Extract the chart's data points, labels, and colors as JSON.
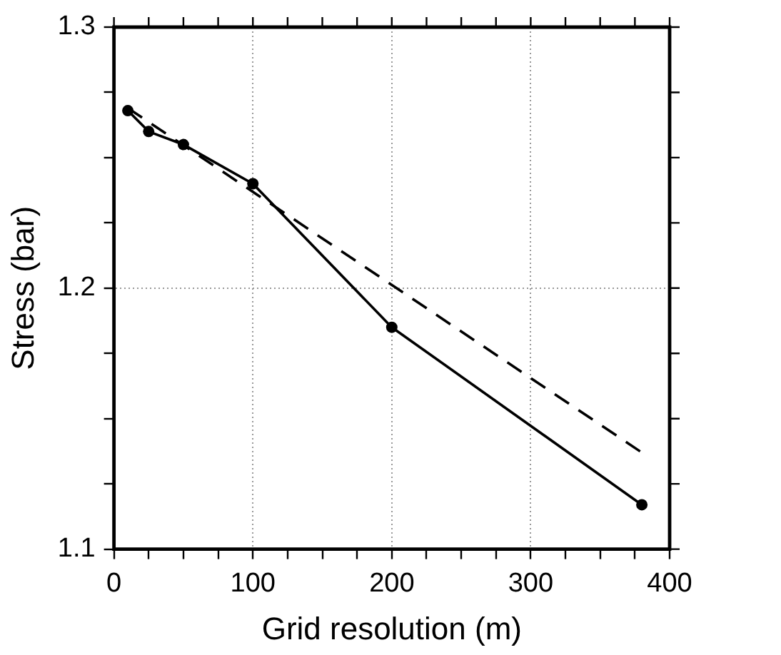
{
  "chart_data": {
    "type": "line",
    "xlabel": "Grid resolution (m)",
    "ylabel": "Stress (bar)",
    "xlim": [
      0,
      400
    ],
    "ylim": [
      1.1,
      1.3
    ],
    "xticks": [
      0,
      {
        "value": 25,
        "label": null
      },
      {
        "value": 50,
        "label": null
      },
      {
        "value": 75,
        "label": null
      },
      100,
      {
        "value": 125,
        "label": null
      },
      {
        "value": 150,
        "label": null
      },
      {
        "value": 175,
        "label": null
      },
      200,
      {
        "value": 225,
        "label": null
      },
      {
        "value": 250,
        "label": null
      },
      {
        "value": 275,
        "label": null
      },
      300,
      {
        "value": 325,
        "label": null
      },
      {
        "value": 350,
        "label": null
      },
      {
        "value": 375,
        "label": null
      },
      400
    ],
    "yticks": [
      1.1,
      {
        "value": 1.125,
        "label": null
      },
      {
        "value": 1.15,
        "label": null
      },
      {
        "value": 1.175,
        "label": null
      },
      1.2,
      {
        "value": 1.225,
        "label": null
      },
      {
        "value": 1.25,
        "label": null
      },
      {
        "value": 1.275,
        "label": null
      },
      1.3
    ],
    "grid": true,
    "legend": false,
    "series": [
      {
        "color": "#000000",
        "x": [
          10,
          25,
          50,
          100,
          200,
          380
        ],
        "values": [
          1.268,
          1.26,
          1.255,
          1.24,
          1.185,
          1.117
        ],
        "marker": "circle",
        "line_style": "solid"
      },
      {
        "color": "#000000",
        "x": [
          10,
          380
        ],
        "values": [
          1.269,
          1.137
        ],
        "marker": "none",
        "line_style": "dashed"
      }
    ]
  }
}
